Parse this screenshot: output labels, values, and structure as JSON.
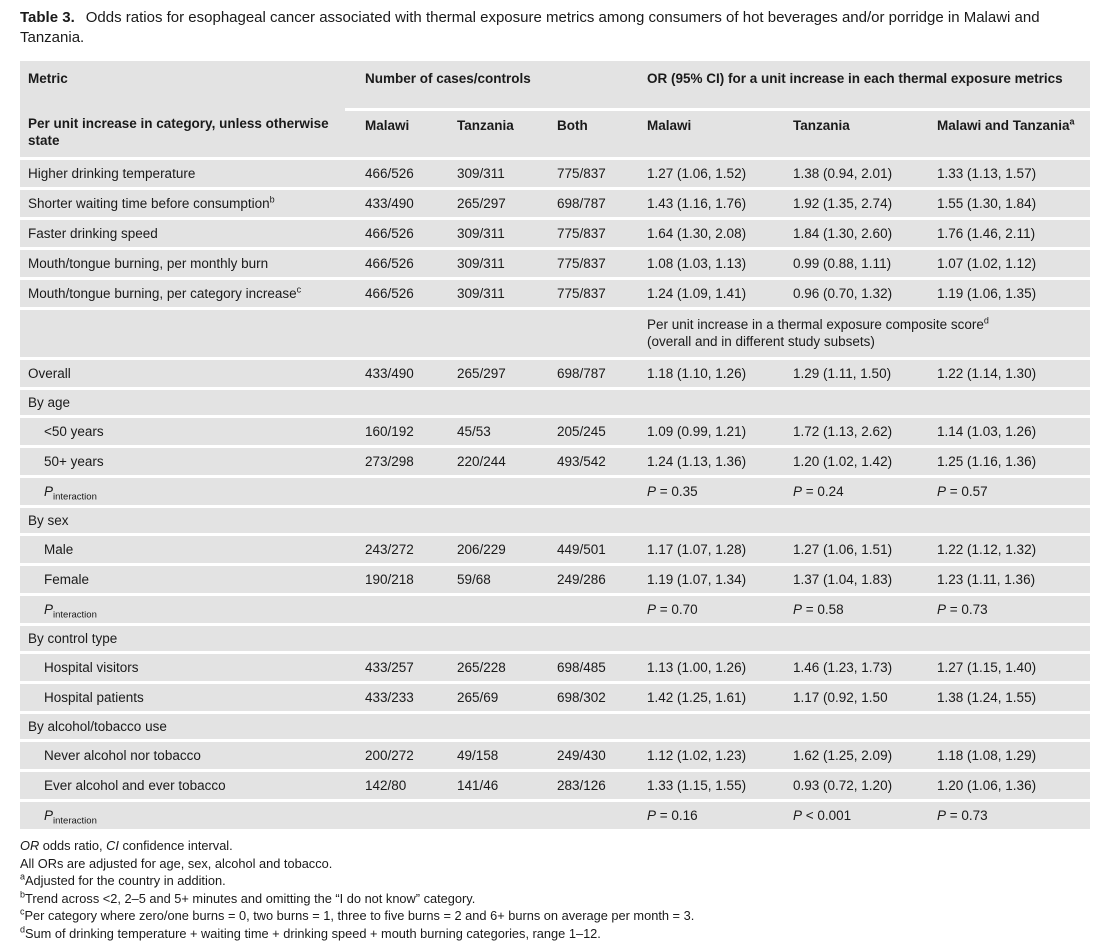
{
  "colors": {
    "row_bg": "#e3e3e3",
    "text": "#1a1a1a"
  },
  "title": {
    "label": "Table 3.",
    "text": "Odds ratios for esophageal cancer associated with thermal exposure metrics among consumers of hot beverages and/or porridge in Malawi and Tanzania."
  },
  "header": {
    "col_metric": "Metric",
    "spanner_cases": "Number of cases/controls",
    "spanner_or": "OR (95% CI) for a unit increase in each thermal exposure metrics",
    "metric_sub": "Per unit increase in category, unless otherwise state",
    "sub_cols": [
      {
        "label": "Malawi"
      },
      {
        "label": "Tanzania"
      },
      {
        "label": "Both"
      },
      {
        "label": "Malawi"
      },
      {
        "label": "Tanzania"
      },
      {
        "label": "Malawi and Tanzania",
        "sup": "a"
      }
    ]
  },
  "rows": [
    {
      "type": "data",
      "label": "Higher drinking temperature",
      "cells": [
        "466/526",
        "309/311",
        "775/837",
        "1.27 (1.06, 1.52)",
        "1.38 (0.94, 2.01)",
        "1.33 (1.13, 1.57)"
      ]
    },
    {
      "type": "data",
      "label": "Shorter waiting time before consumption",
      "sup": "b",
      "cells": [
        "433/490",
        "265/297",
        "698/787",
        "1.43 (1.16, 1.76)",
        "1.92 (1.35, 2.74)",
        "1.55 (1.30, 1.84)"
      ]
    },
    {
      "type": "data",
      "label": "Faster drinking speed",
      "cells": [
        "466/526",
        "309/311",
        "775/837",
        "1.64 (1.30, 2.08)",
        "1.84 (1.30, 2.60)",
        "1.76 (1.46, 2.11)"
      ]
    },
    {
      "type": "data",
      "label": "Mouth/tongue burning, per monthly burn",
      "cells": [
        "466/526",
        "309/311",
        "775/837",
        "1.08 (1.03, 1.13)",
        "0.99 (0.88, 1.11)",
        "1.07 (1.02, 1.12)"
      ]
    },
    {
      "type": "data",
      "label": "Mouth/tongue burning, per category increase",
      "sup": "c",
      "cells": [
        "466/526",
        "309/311",
        "775/837",
        "1.24 (1.09, 1.41)",
        "0.96 (0.70, 1.32)",
        "1.19 (1.06, 1.35)"
      ]
    },
    {
      "type": "composite",
      "text": "Per unit increase in a thermal exposure composite score",
      "sup": "d",
      "text2": "(overall and in different study subsets)"
    },
    {
      "type": "data",
      "label": "Overall",
      "cells": [
        "433/490",
        "265/297",
        "698/787",
        "1.18 (1.10, 1.26)",
        "1.29 (1.11, 1.50)",
        "1.22 (1.14, 1.30)"
      ]
    },
    {
      "type": "section",
      "label": "By age"
    },
    {
      "type": "data",
      "indent": true,
      "label": "<50 years",
      "cells": [
        "160/192",
        "45/53",
        "205/245",
        "1.09 (0.99, 1.21)",
        "1.72 (1.13, 2.62)",
        "1.14 (1.03, 1.26)"
      ]
    },
    {
      "type": "data",
      "indent": true,
      "label": "50+ years",
      "cells": [
        "273/298",
        "220/244",
        "493/542",
        "1.24 (1.13, 1.36)",
        "1.20 (1.02, 1.42)",
        "1.25 (1.16, 1.36)"
      ]
    },
    {
      "type": "pint",
      "p": "P",
      "sub": "interaction",
      "values": [
        "= 0.35",
        "= 0.24",
        "= 0.57"
      ]
    },
    {
      "type": "section",
      "label": "By sex"
    },
    {
      "type": "data",
      "indent": true,
      "label": "Male",
      "cells": [
        "243/272",
        "206/229",
        "449/501",
        "1.17 (1.07, 1.28)",
        "1.27 (1.06, 1.51)",
        "1.22 (1.12, 1.32)"
      ]
    },
    {
      "type": "data",
      "indent": true,
      "label": "Female",
      "cells": [
        "190/218",
        "59/68",
        "249/286",
        "1.19 (1.07, 1.34)",
        "1.37 (1.04, 1.83)",
        "1.23 (1.11, 1.36)"
      ]
    },
    {
      "type": "pint",
      "p": "P",
      "sub": "interaction",
      "values": [
        "= 0.70",
        "= 0.58",
        "= 0.73"
      ]
    },
    {
      "type": "section",
      "label": "By control type"
    },
    {
      "type": "data",
      "indent": true,
      "label": "Hospital visitors",
      "cells": [
        "433/257",
        "265/228",
        "698/485",
        "1.13 (1.00, 1.26)",
        "1.46 (1.23, 1.73)",
        "1.27 (1.15, 1.40)"
      ]
    },
    {
      "type": "data",
      "indent": true,
      "label": "Hospital patients",
      "cells": [
        "433/233",
        "265/69",
        "698/302",
        "1.42 (1.25, 1.61)",
        "1.17 (0.92, 1.50",
        "1.38 (1.24, 1.55)"
      ]
    },
    {
      "type": "section",
      "label": "By alcohol/tobacco use"
    },
    {
      "type": "data",
      "indent": true,
      "label": "Never alcohol nor tobacco",
      "cells": [
        "200/272",
        "49/158",
        "249/430",
        "1.12 (1.02, 1.23)",
        "1.62 (1.25, 2.09)",
        "1.18 (1.08, 1.29)"
      ]
    },
    {
      "type": "data",
      "indent": true,
      "label": "Ever alcohol and ever tobacco",
      "cells": [
        "142/80",
        "141/46",
        "283/126",
        "1.33 (1.15, 1.55)",
        "0.93 (0.72, 1.20)",
        "1.20 (1.06, 1.36)"
      ]
    },
    {
      "type": "pint",
      "p": "P",
      "sub": "interaction",
      "values": [
        "= 0.16",
        "< 0.001",
        "= 0.73"
      ]
    }
  ],
  "footnotes": {
    "abbrev": [
      {
        "t": "OR",
        "i": true
      },
      {
        "t": " odds ratio, "
      },
      {
        "t": "CI",
        "i": true
      },
      {
        "t": " confidence interval."
      }
    ],
    "adjust": "All ORs are adjusted for age, sex, alcohol and tobacco.",
    "notes": [
      {
        "sup": "a",
        "text": "Adjusted for the country in addition."
      },
      {
        "sup": "b",
        "text": "Trend across <2, 2–5 and 5+ minutes and omitting the “I do not know” category."
      },
      {
        "sup": "c",
        "text": "Per category where zero/one burns = 0, two burns = 1, three to five burns = 2 and 6+ burns on average per month = 3."
      },
      {
        "sup": "d",
        "text": "Sum of drinking temperature + waiting time + drinking speed + mouth burning categories, range 1–12."
      }
    ]
  }
}
